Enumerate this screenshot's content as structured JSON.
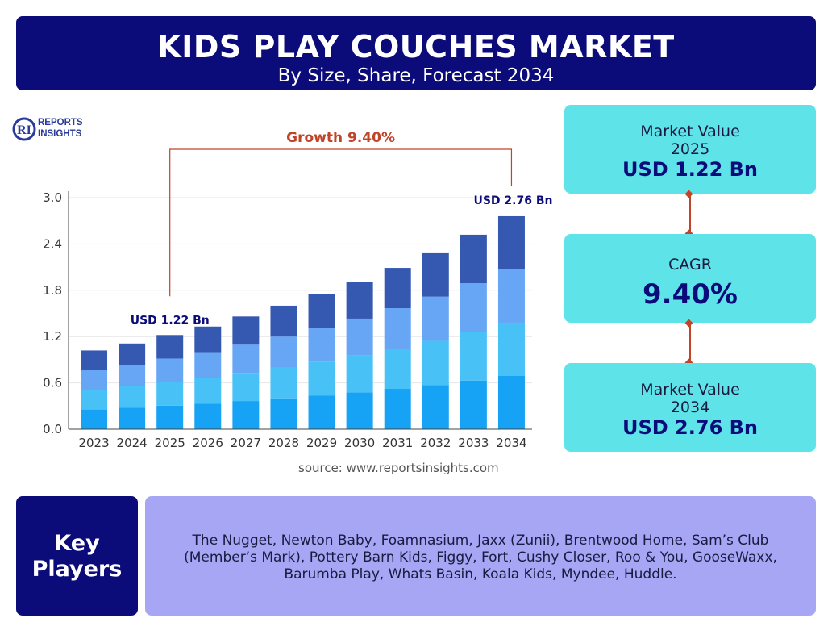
{
  "header": {
    "title": "KIDS PLAY COUCHES MARKET",
    "subtitle": "By Size, Share, Forecast 2034"
  },
  "logo": {
    "line1": "REPORTS",
    "line2": "INSIGHTS",
    "mark": "RI"
  },
  "colors": {
    "navy": "#0b0b7a",
    "cyan_box": "#5ee3e8",
    "lavender": "#a6a6f5",
    "accent_red": "#c0442a",
    "bar_segments": [
      "#16a2f5",
      "#48c1f7",
      "#66a6f5",
      "#3559b0"
    ]
  },
  "chart_data": {
    "type": "bar",
    "stacked": true,
    "categories": [
      "2023",
      "2024",
      "2025",
      "2026",
      "2027",
      "2028",
      "2029",
      "2030",
      "2031",
      "2032",
      "2033",
      "2034"
    ],
    "totals": [
      1.02,
      1.11,
      1.22,
      1.33,
      1.46,
      1.6,
      1.75,
      1.91,
      2.09,
      2.29,
      2.52,
      2.76
    ],
    "segment_shares": [
      0.25,
      0.25,
      0.25,
      0.25
    ],
    "ylim": [
      0,
      3.0
    ],
    "yticks": [
      "0.0",
      "0.6",
      "1.2",
      "1.8",
      "2.4",
      "3.0"
    ],
    "grid": true,
    "annotations": {
      "growth_label": "Growth 9.40%",
      "start_label": "USD 1.22 Bn",
      "end_label": "USD 2.76 Bn",
      "start_category": "2025",
      "end_category": "2034"
    }
  },
  "source": "source: www.reportsinsights.com",
  "boxes": {
    "market_value_2025": {
      "label": "Market Value",
      "year": "2025",
      "value": "USD 1.22 Bn"
    },
    "cagr": {
      "label": "CAGR",
      "value": "9.40%"
    },
    "market_value_2034": {
      "label": "Market Value",
      "year": "2034",
      "value": "USD 2.76 Bn"
    }
  },
  "key_players": {
    "heading_line1": "Key",
    "heading_line2": "Players",
    "text": "The Nugget, Newton Baby, Foamnasium, Jaxx (Zunii), Brentwood Home, Sam’s Club (Member’s Mark), Pottery Barn Kids, Figgy, Fort, Cushy Closer, Roo & You, GooseWaxx, Barumba Play, Whats Basin, Koala Kids, Myndee, Huddle."
  }
}
